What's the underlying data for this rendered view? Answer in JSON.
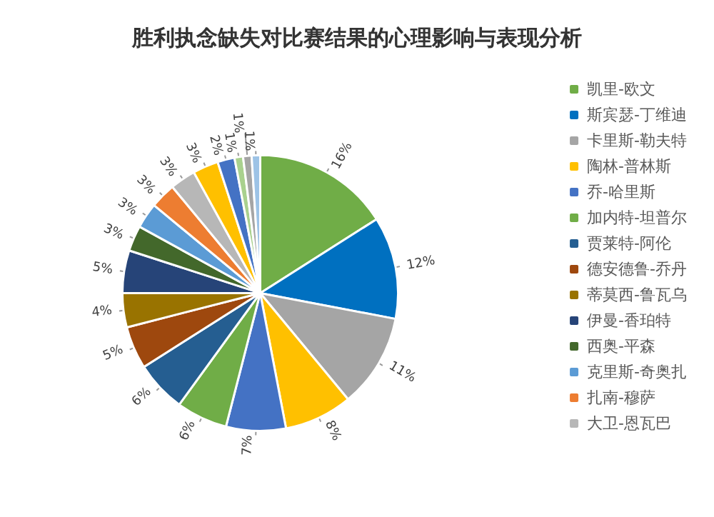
{
  "chart_data": {
    "type": "pie",
    "title": "胜利执念缺失对比赛结果的心理影响与表现分析",
    "categories": [
      "凯里-欧文",
      "斯宾瑟-丁维迪",
      "卡里斯-勒夫特",
      "陶林-普林斯",
      "乔-哈里斯",
      "加内特-坦普尔",
      "贾莱特-阿伦",
      "德安德鲁-乔丹",
      "蒂莫西-鲁瓦乌",
      "伊曼-香珀特",
      "西奥-平森",
      "克里斯-奇奥扎",
      "扎南-穆萨",
      "大卫-恩瓦巴",
      null,
      null,
      null,
      null,
      null
    ],
    "values": [
      16,
      12,
      11,
      8,
      7,
      6,
      6,
      5,
      4,
      5,
      3,
      3,
      3,
      3,
      3,
      2,
      1,
      1,
      1
    ],
    "colors": [
      "#70ad47",
      "#0070c0",
      "#a5a5a5",
      "#ffc000",
      "#4472c4",
      "#70ad47",
      "#255e91",
      "#9e480e",
      "#997300",
      "#264478",
      "#43682b",
      "#5b9bd5",
      "#ed7d31",
      "#b7b7b7",
      "#ffc000",
      "#4472c4",
      "#a9d18e",
      "#a5a5a5",
      "#9dc3e6"
    ],
    "value_labels": [
      "16%",
      "12%",
      "11%",
      "8%",
      "7%",
      "6%",
      "6%",
      "5%",
      "4%",
      "5%",
      "3%",
      "3%",
      "3%",
      "3%",
      "3%",
      "2%",
      "1%",
      "1%",
      "1%"
    ],
    "legend": "right"
  }
}
